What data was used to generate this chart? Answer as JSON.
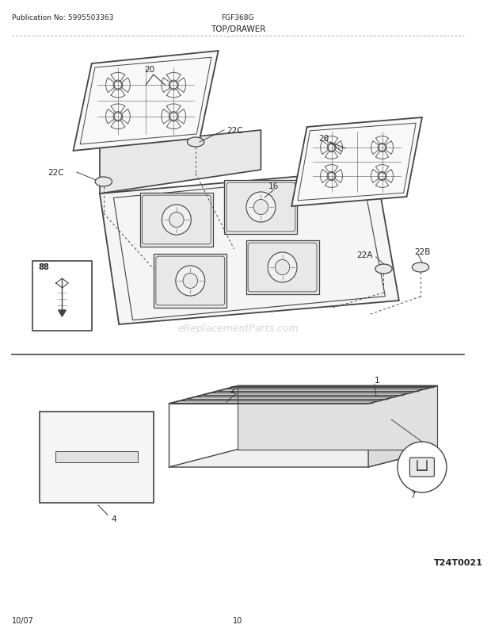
{
  "title": "TOP/DRAWER",
  "pub_no": "Publication No: 5995503363",
  "model": "FGF368G",
  "date": "10/07",
  "page": "10",
  "diagram_code": "T24T0021",
  "watermark": "eReplacementParts.com",
  "bg_color": "#ffffff",
  "line_color": "#444444",
  "text_color": "#222222"
}
